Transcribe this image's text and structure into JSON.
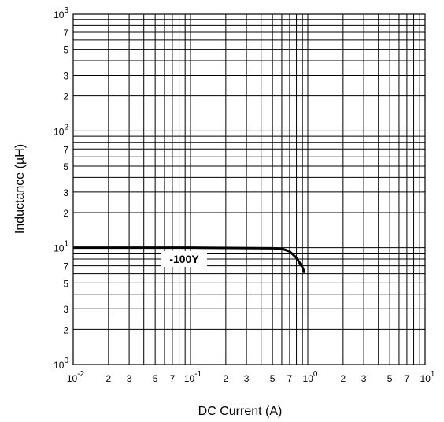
{
  "chart_data": {
    "type": "line",
    "x_label": "DC Current  (A)",
    "y_label": "Inductance (µH)",
    "log_x": true,
    "log_y": true,
    "grid": true,
    "xlim": [
      0.01,
      10
    ],
    "ylim": [
      1,
      1000
    ],
    "xticks": [
      {
        "value": 0.01,
        "label": "10",
        "exponent": "-2"
      },
      {
        "value": 0.02,
        "label": "2"
      },
      {
        "value": 0.03,
        "label": "3"
      },
      {
        "value": 0.05,
        "label": "5"
      },
      {
        "value": 0.07,
        "label": "7"
      },
      {
        "value": 0.1,
        "label": "10",
        "exponent": "-1"
      },
      {
        "value": 0.2,
        "label": "2"
      },
      {
        "value": 0.3,
        "label": "3"
      },
      {
        "value": 0.5,
        "label": "5"
      },
      {
        "value": 0.7,
        "label": "7"
      },
      {
        "value": 1,
        "label": "10",
        "exponent": "0"
      },
      2,
      3,
      5,
      7,
      {
        "value": 10,
        "label": "10",
        "exponent": "1"
      }
    ],
    "yticks": [
      {
        "value": 1,
        "label": "10",
        "exponent": "0"
      },
      2,
      3,
      5,
      7,
      {
        "value": 10,
        "label": "10",
        "exponent": "1"
      },
      {
        "value": 20,
        "label": "2"
      },
      {
        "value": 30,
        "label": "3"
      },
      {
        "value": 50,
        "label": "5"
      },
      {
        "value": 70,
        "label": "7"
      },
      {
        "value": 100,
        "label": "10",
        "exponent": "2"
      },
      {
        "value": 200,
        "label": "2"
      },
      {
        "value": 300,
        "label": "3"
      },
      {
        "value": 500,
        "label": "5"
      },
      {
        "value": 700,
        "label": "7"
      },
      {
        "value": 1000,
        "label": "10",
        "exponent": "3"
      }
    ],
    "xgrid": [
      0.01,
      0.02,
      0.03,
      0.04,
      0.05,
      0.06,
      0.07,
      0.08,
      0.09,
      0.1,
      0.2,
      0.3,
      0.4,
      0.5,
      0.6,
      0.7,
      0.8,
      0.9,
      1,
      2,
      3,
      4,
      5,
      6,
      7,
      8,
      9,
      10
    ],
    "ygrid": [
      1,
      2,
      3,
      4,
      5,
      6,
      7,
      8,
      9,
      10,
      20,
      30,
      40,
      50,
      60,
      70,
      80,
      90,
      100,
      200,
      300,
      400,
      500,
      600,
      700,
      800,
      900,
      1000
    ],
    "series": [
      {
        "name": "-100Y",
        "color": "#000000",
        "x": [
          0.01,
          0.1,
          0.5,
          0.6,
          0.7,
          0.8,
          0.9,
          0.94
        ],
        "values": [
          10,
          10,
          9.9,
          9.8,
          9.3,
          8.2,
          6.8,
          6.1
        ]
      }
    ]
  }
}
